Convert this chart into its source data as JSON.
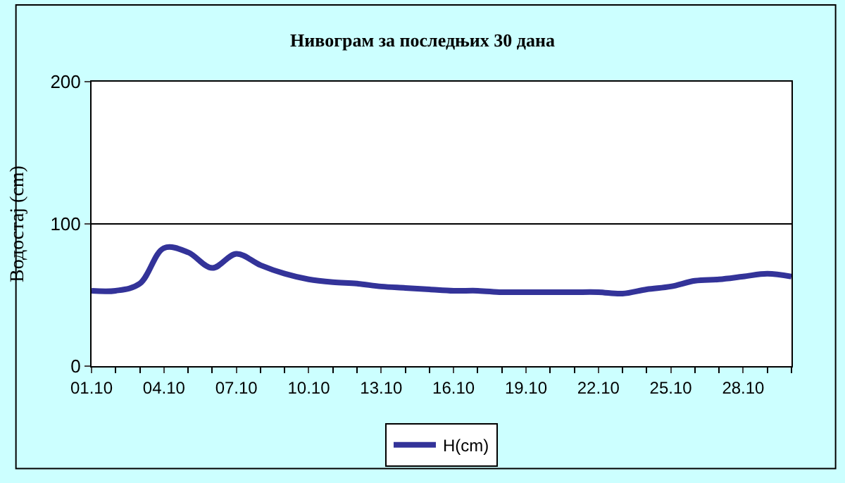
{
  "chart_data": {
    "type": "line",
    "title": "Нивограм за последњих 30 дана",
    "ylabel": "Водостај (cm)",
    "categories": [
      "01.10",
      null,
      null,
      "04.10",
      null,
      null,
      "07.10",
      null,
      null,
      "10.10",
      null,
      null,
      "13.10",
      null,
      null,
      "16.10",
      null,
      null,
      "19.10",
      null,
      null,
      "22.10",
      null,
      null,
      "25.10",
      null,
      null,
      "28.10",
      null,
      null
    ],
    "series": [
      {
        "name": "H(cm)",
        "color": "#333399",
        "values": [
          53,
          53,
          58,
          83,
          80,
          69,
          79,
          71,
          65,
          61,
          59,
          58,
          56,
          55,
          54,
          53,
          53,
          52,
          52,
          52,
          52,
          52,
          51,
          54,
          56,
          60,
          61,
          63,
          65,
          63
        ]
      }
    ],
    "ylim": [
      0,
      200
    ],
    "yticks": [
      0,
      100,
      200
    ],
    "grid": "y",
    "legend": "bottom",
    "marker": "none",
    "line_style": "solid"
  }
}
